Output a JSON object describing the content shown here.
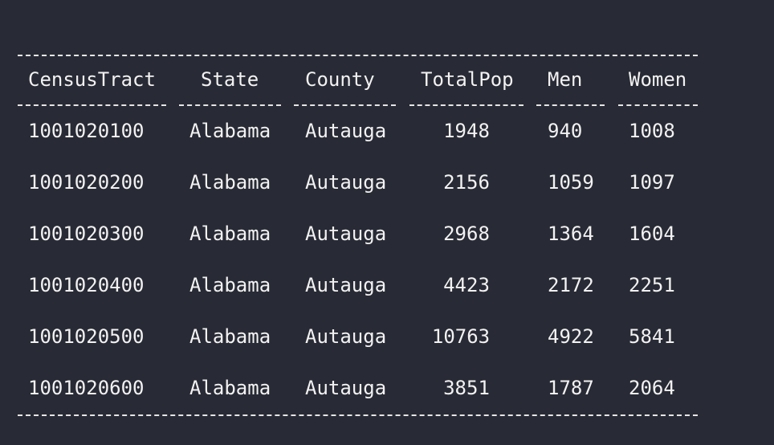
{
  "table": {
    "columns": [
      "CensusTract",
      "State",
      "County",
      "TotalPop",
      "Men",
      "Women"
    ],
    "rows": [
      [
        "1001020100",
        "Alabama",
        "Autauga",
        "1948",
        "940",
        "1008"
      ],
      [
        "1001020200",
        "Alabama",
        "Autauga",
        "2156",
        "1059",
        "1097"
      ],
      [
        "1001020300",
        "Alabama",
        "Autauga",
        "2968",
        "1364",
        "1604"
      ],
      [
        "1001020400",
        "Alabama",
        "Autauga",
        "4423",
        "2172",
        "2251"
      ],
      [
        "1001020500",
        "Alabama",
        "Autauga",
        "10763",
        "4922",
        "5841"
      ],
      [
        "1001020600",
        "Alabama",
        "Autauga",
        "3851",
        "1787",
        "2064"
      ]
    ]
  }
}
